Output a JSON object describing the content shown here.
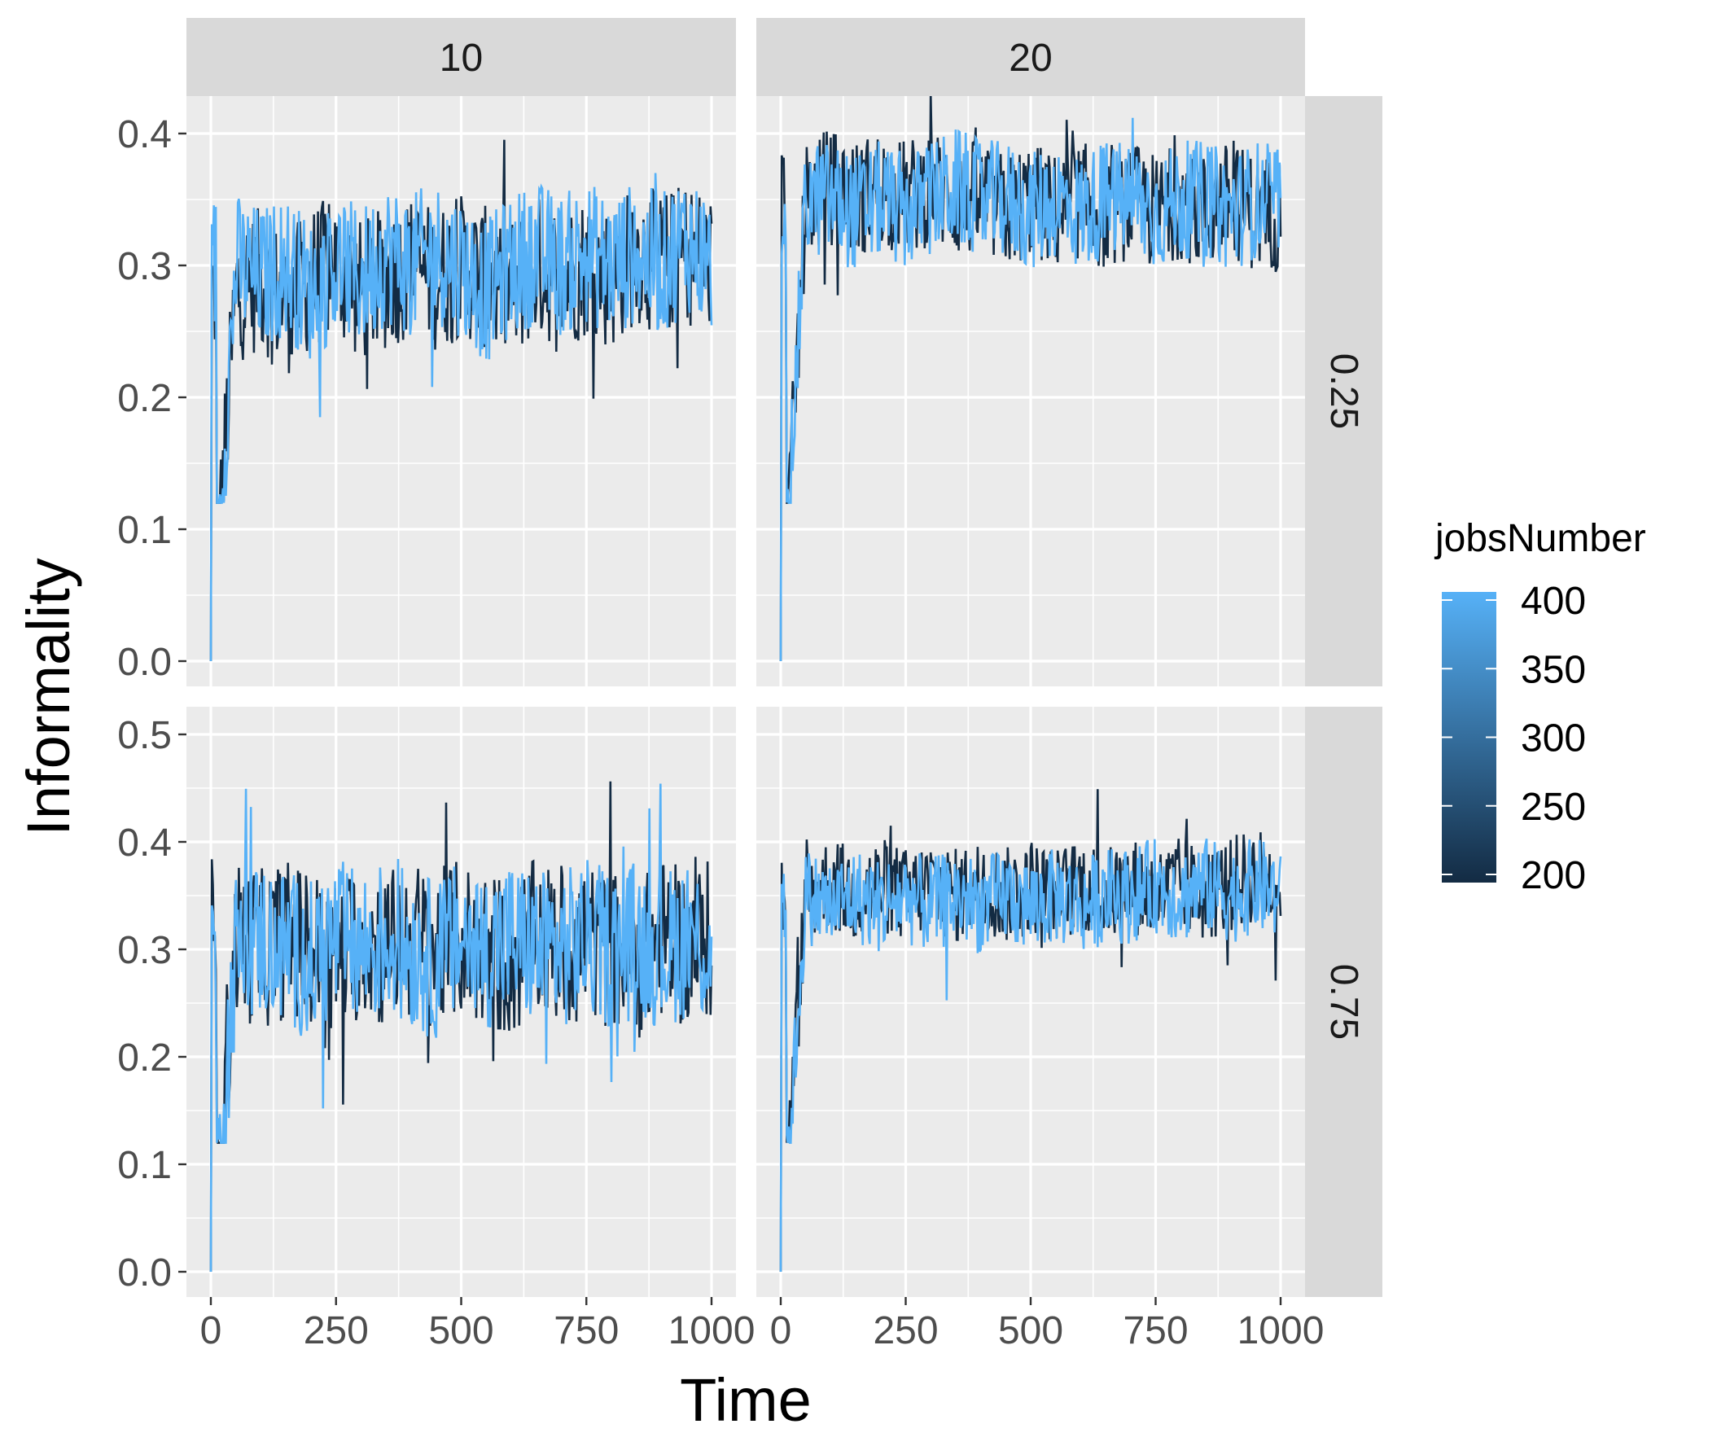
{
  "chart_data": {
    "type": "line",
    "title": "",
    "xlabel": "Time",
    "ylabel": "Informality",
    "facet_cols": [
      "10",
      "20"
    ],
    "facet_rows": [
      "0.25",
      "0.75"
    ],
    "xlim": [
      0,
      1000
    ],
    "x_ticks": [
      0,
      250,
      500,
      750,
      1000
    ],
    "x_tick_labels": [
      "0",
      "250",
      "500",
      "750",
      "1000"
    ],
    "rows": [
      {
        "ylim": [
          0,
          0.48
        ],
        "y_ticks": [
          0,
          0.1,
          0.2,
          0.3,
          0.4
        ],
        "y_tick_labels": [
          "0.0",
          "0.1",
          "0.2",
          "0.3",
          "0.4"
        ]
      },
      {
        "ylim": [
          0,
          0.51
        ],
        "y_ticks": [
          0,
          0.1,
          0.2,
          0.3,
          0.4,
          0.5
        ],
        "y_tick_labels": [
          "0.0",
          "0.1",
          "0.2",
          "0.3",
          "0.4",
          "0.5"
        ]
      }
    ],
    "grid": true,
    "legend": {
      "title": "jobsNumber",
      "position": "right",
      "min": 200,
      "max": 400,
      "ticks": [
        400,
        350,
        300,
        250,
        200
      ],
      "tick_labels": [
        "400",
        "350",
        "300",
        "250",
        "200"
      ],
      "color_low": "#132B43",
      "color_high": "#56B1F7"
    },
    "series": [
      {
        "jobsNumber": 200,
        "panels": [
          {
            "row": "0.25",
            "col": "10",
            "x": [
              0,
              50,
              100,
              150,
              200,
              250,
              300,
              350,
              400,
              450,
              500,
              550,
              600,
              650,
              700,
              750,
              800,
              850,
              900,
              950,
              1000
            ],
            "y": [
              0,
              0.28,
              0.29,
              0.27,
              0.29,
              0.3,
              0.28,
              0.29,
              0.3,
              0.29,
              0.3,
              0.29,
              0.28,
              0.3,
              0.29,
              0.3,
              0.29,
              0.31,
              0.3,
              0.31,
              0.3
            ]
          },
          {
            "row": "0.25",
            "col": "20",
            "x": [
              0,
              50,
              100,
              150,
              200,
              250,
              300,
              350,
              400,
              450,
              500,
              550,
              600,
              650,
              700,
              750,
              800,
              850,
              900,
              950,
              1000
            ],
            "y": [
              0,
              0.35,
              0.36,
              0.35,
              0.36,
              0.35,
              0.36,
              0.35,
              0.35,
              0.34,
              0.35,
              0.34,
              0.35,
              0.34,
              0.35,
              0.34,
              0.35,
              0.34,
              0.35,
              0.34,
              0.34
            ]
          },
          {
            "row": "0.75",
            "col": "10",
            "x": [
              0,
              50,
              100,
              150,
              200,
              250,
              300,
              350,
              400,
              450,
              500,
              550,
              600,
              650,
              700,
              750,
              800,
              850,
              900,
              950,
              1000
            ],
            "y": [
              0,
              0.31,
              0.3,
              0.31,
              0.3,
              0.29,
              0.31,
              0.3,
              0.31,
              0.3,
              0.31,
              0.3,
              0.29,
              0.31,
              0.3,
              0.31,
              0.3,
              0.29,
              0.31,
              0.3,
              0.31
            ]
          },
          {
            "row": "0.75",
            "col": "20",
            "x": [
              0,
              50,
              100,
              150,
              200,
              250,
              300,
              350,
              400,
              450,
              500,
              550,
              600,
              650,
              700,
              750,
              800,
              850,
              900,
              950,
              1000
            ],
            "y": [
              0,
              0.35,
              0.36,
              0.35,
              0.36,
              0.35,
              0.36,
              0.35,
              0.36,
              0.35,
              0.36,
              0.35,
              0.36,
              0.35,
              0.36,
              0.35,
              0.36,
              0.35,
              0.36,
              0.37,
              0.36
            ]
          }
        ]
      },
      {
        "jobsNumber": 400,
        "panels": [
          {
            "row": "0.25",
            "col": "10",
            "x": [
              0,
              50,
              100,
              150,
              200,
              250,
              300,
              350,
              400,
              450,
              500,
              550,
              600,
              650,
              700,
              750,
              800,
              850,
              900,
              950,
              1000
            ],
            "y": [
              0,
              0.3,
              0.29,
              0.3,
              0.28,
              0.3,
              0.29,
              0.31,
              0.3,
              0.31,
              0.3,
              0.28,
              0.3,
              0.31,
              0.3,
              0.31,
              0.3,
              0.31,
              0.3,
              0.32,
              0.3
            ]
          },
          {
            "row": "0.25",
            "col": "20",
            "x": [
              0,
              50,
              100,
              150,
              200,
              250,
              300,
              350,
              400,
              450,
              500,
              550,
              600,
              650,
              700,
              750,
              800,
              850,
              900,
              950,
              1000
            ],
            "y": [
              0,
              0.35,
              0.35,
              0.34,
              0.35,
              0.34,
              0.35,
              0.36,
              0.35,
              0.35,
              0.34,
              0.35,
              0.34,
              0.35,
              0.35,
              0.34,
              0.35,
              0.35,
              0.34,
              0.35,
              0.35
            ]
          },
          {
            "row": "0.75",
            "col": "10",
            "x": [
              0,
              50,
              100,
              150,
              200,
              250,
              300,
              350,
              400,
              450,
              500,
              550,
              600,
              650,
              700,
              750,
              800,
              850,
              900,
              950,
              1000
            ],
            "y": [
              0,
              0.3,
              0.31,
              0.3,
              0.29,
              0.31,
              0.3,
              0.31,
              0.3,
              0.29,
              0.31,
              0.3,
              0.31,
              0.3,
              0.3,
              0.31,
              0.3,
              0.31,
              0.3,
              0.31,
              0.3
            ]
          },
          {
            "row": "0.75",
            "col": "20",
            "x": [
              0,
              50,
              100,
              150,
              200,
              250,
              300,
              350,
              400,
              450,
              500,
              550,
              600,
              650,
              700,
              750,
              800,
              850,
              900,
              950,
              1000
            ],
            "y": [
              0,
              0.35,
              0.34,
              0.35,
              0.34,
              0.35,
              0.34,
              0.35,
              0.34,
              0.35,
              0.34,
              0.35,
              0.34,
              0.35,
              0.35,
              0.36,
              0.35,
              0.36,
              0.35,
              0.36,
              0.35
            ]
          }
        ]
      }
    ]
  }
}
